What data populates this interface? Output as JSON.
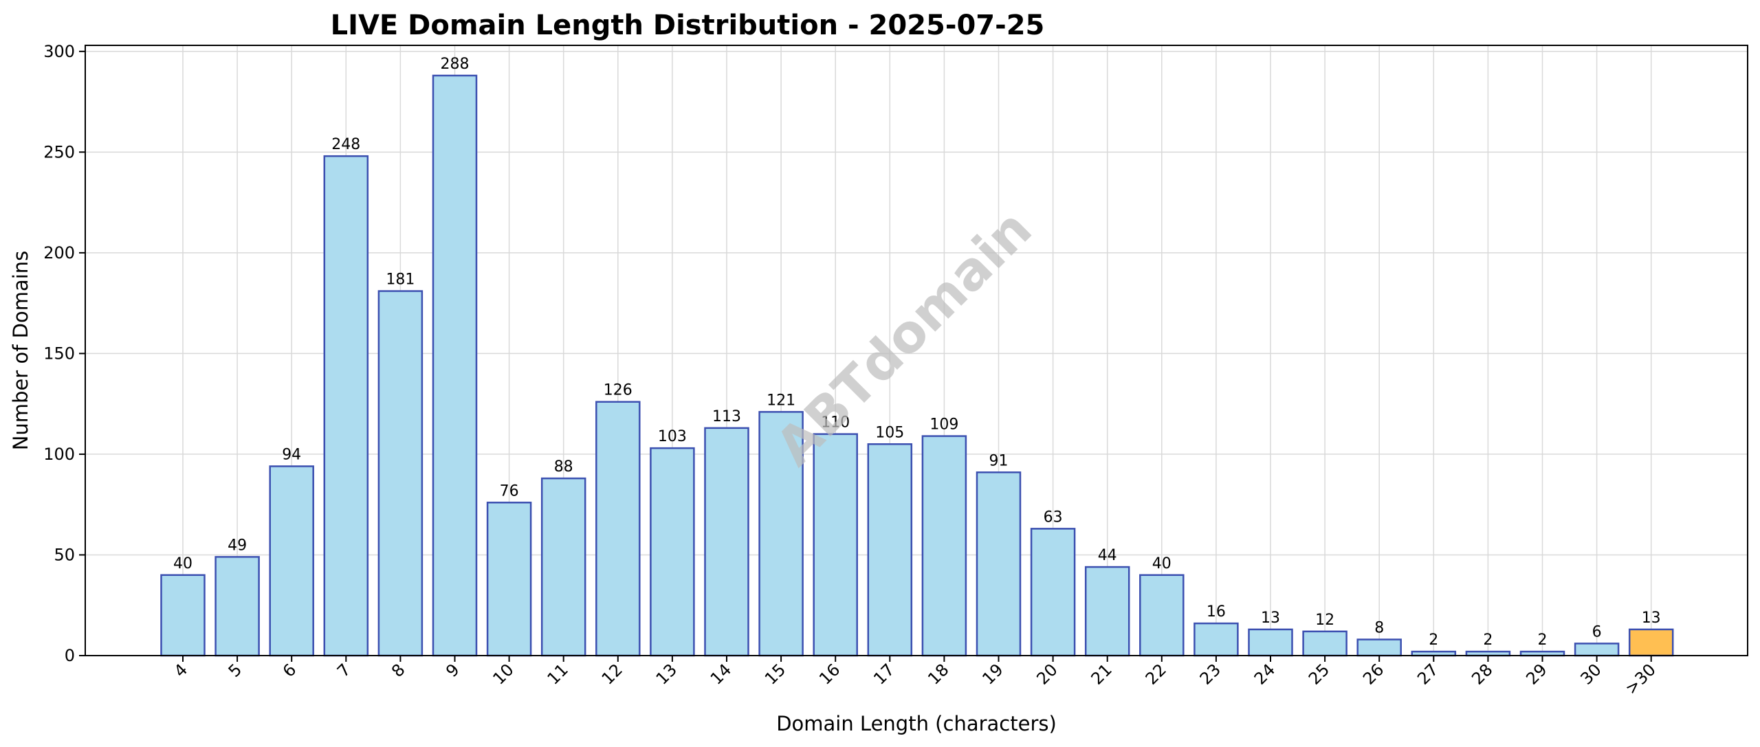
{
  "chart_data": {
    "type": "bar",
    "title": "LIVE Domain Length Distribution - 2025-07-25",
    "xlabel": "Domain Length (characters)",
    "ylabel": "Number of Domains",
    "ylim": [
      0,
      303
    ],
    "yticks": [
      0,
      50,
      100,
      150,
      200,
      250,
      300
    ],
    "grid": true,
    "categories": [
      "4",
      "5",
      "6",
      "7",
      "8",
      "9",
      "10",
      "11",
      "12",
      "13",
      "14",
      "15",
      "16",
      "17",
      "18",
      "19",
      "20",
      "21",
      "22",
      "23",
      "24",
      "25",
      "26",
      "27",
      "28",
      "29",
      "30",
      ">30"
    ],
    "values": [
      40,
      49,
      94,
      248,
      181,
      288,
      76,
      88,
      126,
      103,
      113,
      121,
      110,
      105,
      109,
      91,
      63,
      44,
      40,
      16,
      13,
      12,
      8,
      2,
      2,
      2,
      6,
      13
    ],
    "colors": {
      "bar": "#ADDCEF",
      "bar_highlight": "#FFBF52",
      "edge": "#3B4FB0"
    },
    "highlight_category": ">30",
    "watermark": "ABTdomain"
  }
}
